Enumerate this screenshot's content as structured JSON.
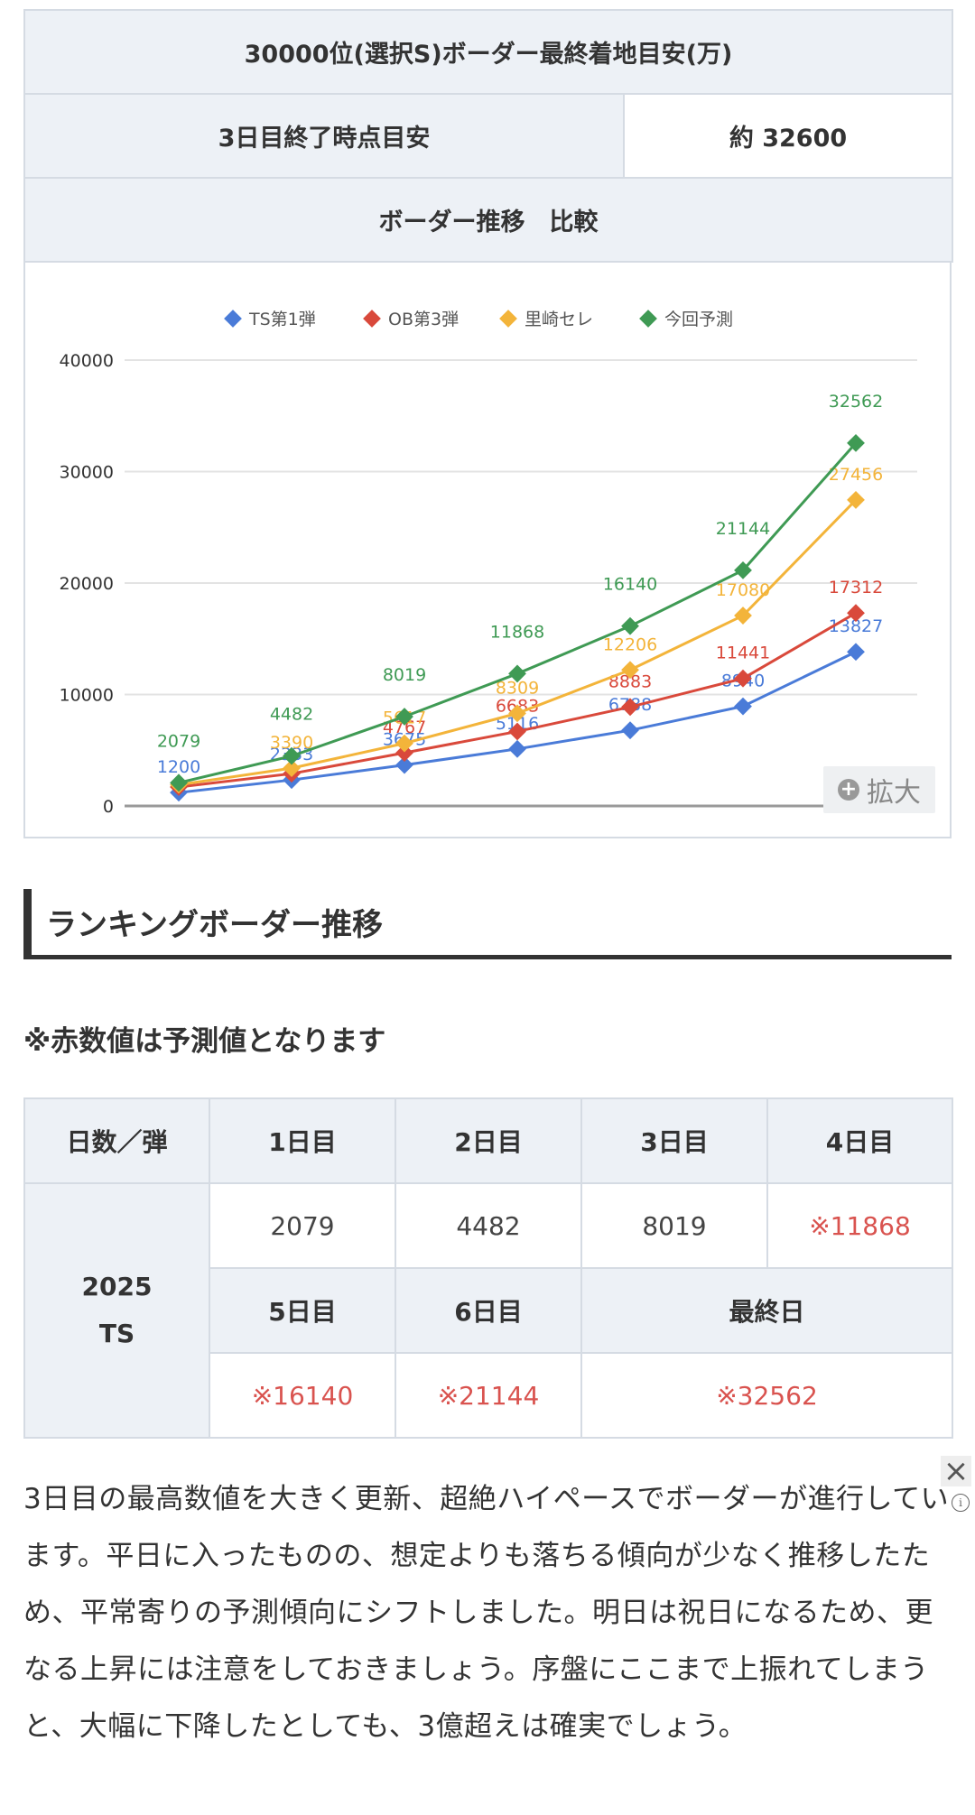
{
  "summary": {
    "title": "30000位(選択S)ボーダー最終着地目安(万)",
    "day3_label": "3日目終了時点目安",
    "day3_value": "約 32600",
    "comparison_label": "ボーダー推移　比較"
  },
  "chart_data": {
    "type": "line",
    "title": "",
    "xlabel": "",
    "ylabel": "",
    "ylim": [
      0,
      40000
    ],
    "yticks": [
      "0",
      "10000",
      "20000",
      "30000",
      "40000"
    ],
    "x": [
      1,
      2,
      3,
      4,
      5,
      6,
      7
    ],
    "grid": true,
    "legend": "top",
    "series": [
      {
        "name": "TS第1弾",
        "color": "#4a7bd8",
        "values": [
          1200,
          2333,
          3675,
          5116,
          6788,
          8940,
          13827
        ],
        "labels": [
          "1200",
          "2333",
          "3675",
          "5116",
          "6788",
          "8940",
          "13827"
        ]
      },
      {
        "name": "OB第3弾",
        "color": "#d9493b",
        "values": [
          1700,
          2900,
          4767,
          6683,
          8883,
          11441,
          17312
        ],
        "labels": [
          "",
          "",
          "4767",
          "6683",
          "8883",
          "11441",
          "17312"
        ]
      },
      {
        "name": "里崎セレ",
        "color": "#f3b43a",
        "values": [
          1900,
          3390,
          5617,
          8309,
          12206,
          17080,
          27456
        ],
        "labels": [
          "",
          "3390",
          "5617",
          "8309",
          "12206",
          "17080",
          "27456"
        ]
      },
      {
        "name": "今回予測",
        "color": "#3f9a54",
        "values": [
          2079,
          4482,
          8019,
          11868,
          16140,
          21144,
          32562
        ],
        "labels": [
          "2079",
          "4482",
          "8019",
          "11868",
          "16140",
          "21144",
          "32562"
        ]
      }
    ]
  },
  "zoom_label": "拡大",
  "section_title": "ランキングボーダー推移",
  "note": "※赤数値は予測値となります",
  "border_table": {
    "corner": "日数／弾",
    "row_label": "2025\nTS",
    "top_headers": [
      "1日目",
      "2日目",
      "3日目",
      "4日目"
    ],
    "top_values": [
      "2079",
      "4482",
      "8019",
      "※11868"
    ],
    "bottom_headers": [
      "5日目",
      "6日目",
      "最終日"
    ],
    "bottom_values": [
      "※16140",
      "※21144",
      "※32562"
    ]
  },
  "paragraph": "3日目の最高数値を大きく更新、超絶ハイペースでボーダーが進行しています。平日に入ったものの、想定よりも落ちる傾向が少なく推移したため、平常寄りの予測傾向にシフトしました。明日は祝日になるため、更なる上昇には注意をしておきましょう。序盤にここまで上振れてしまうと、大幅に下降したとしても、3億超えは確実でしょう。",
  "ad": {
    "close_icon": "×",
    "info_icon": "i"
  }
}
